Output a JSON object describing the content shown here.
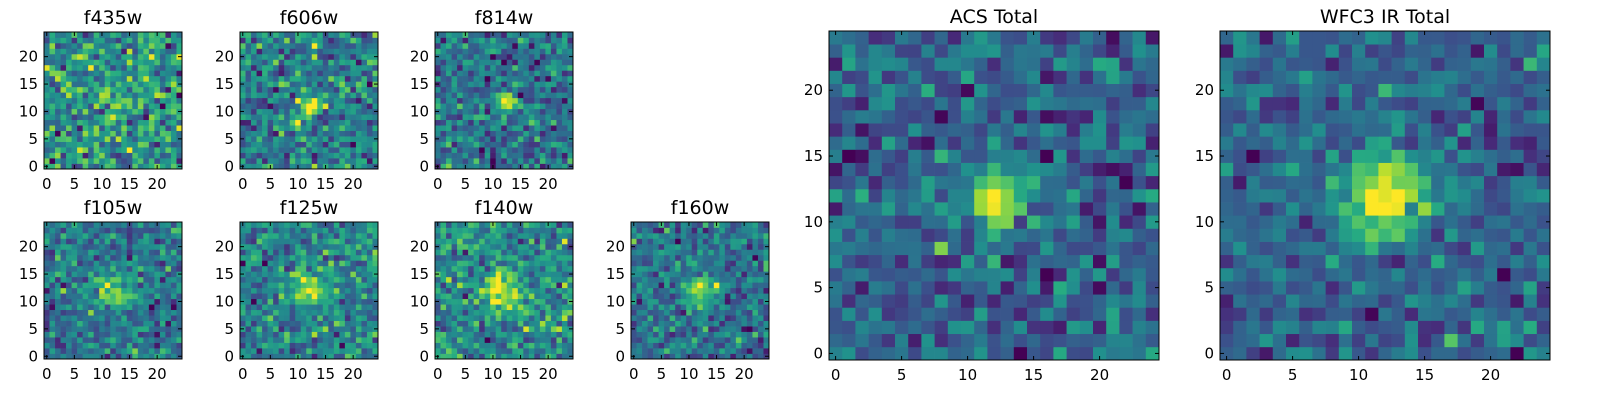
{
  "colormap": "viridis",
  "colors": {
    "low": "#440154",
    "mid": "#21918c",
    "high": "#fde725",
    "frame": "#000000",
    "background": "#ffffff"
  },
  "chart_data": [
    {
      "type": "heatmap",
      "title": "f435w",
      "grid_size": 25,
      "xticks": [
        "0",
        "5",
        "10",
        "15",
        "20"
      ],
      "yticks": [
        "0",
        "5",
        "10",
        "15",
        "20"
      ],
      "xlim": [
        -0.5,
        24.5
      ],
      "ylim": [
        -0.5,
        24.5
      ],
      "source": {
        "center": [
          12,
          11
        ],
        "amplitude": 0.15,
        "sigma": 2.2
      },
      "noise": 0.55,
      "seed": 435
    },
    {
      "type": "heatmap",
      "title": "f606w",
      "grid_size": 25,
      "xticks": [
        "0",
        "5",
        "10",
        "15",
        "20"
      ],
      "yticks": [
        "0",
        "5",
        "10",
        "15",
        "20"
      ],
      "xlim": [
        -0.5,
        24.5
      ],
      "ylim": [
        -0.5,
        24.5
      ],
      "source": {
        "center": [
          12,
          11
        ],
        "amplitude": 0.55,
        "sigma": 1.3
      },
      "noise": 0.5,
      "seed": 606
    },
    {
      "type": "heatmap",
      "title": "f814w",
      "grid_size": 25,
      "xticks": [
        "0",
        "5",
        "10",
        "15",
        "20"
      ],
      "yticks": [
        "0",
        "5",
        "10",
        "15",
        "20"
      ],
      "xlim": [
        -0.5,
        24.5
      ],
      "ylim": [
        -0.5,
        24.5
      ],
      "source": {
        "center": [
          12,
          11.5
        ],
        "amplitude": 0.6,
        "sigma": 1.3
      },
      "noise": 0.5,
      "seed": 814
    },
    {
      "type": "heatmap",
      "title": "f105w",
      "grid_size": 25,
      "xticks": [
        "0",
        "5",
        "10",
        "15",
        "20"
      ],
      "yticks": [
        "0",
        "5",
        "10",
        "15",
        "20"
      ],
      "xlim": [
        -0.5,
        24.5
      ],
      "ylim": [
        -0.5,
        24.5
      ],
      "source": {
        "center": [
          12,
          12
        ],
        "amplitude": 0.45,
        "sigma": 2.4
      },
      "noise": 0.5,
      "seed": 105
    },
    {
      "type": "heatmap",
      "title": "f125w",
      "grid_size": 25,
      "xticks": [
        "0",
        "5",
        "10",
        "15",
        "20"
      ],
      "yticks": [
        "0",
        "5",
        "10",
        "15",
        "20"
      ],
      "xlim": [
        -0.5,
        24.5
      ],
      "ylim": [
        -0.5,
        24.5
      ],
      "source": {
        "center": [
          12,
          12
        ],
        "amplitude": 0.5,
        "sigma": 2.3
      },
      "noise": 0.45,
      "seed": 125
    },
    {
      "type": "heatmap",
      "title": "f140w",
      "grid_size": 25,
      "xticks": [
        "0",
        "5",
        "10",
        "15",
        "20"
      ],
      "yticks": [
        "0",
        "5",
        "10",
        "15",
        "20"
      ],
      "xlim": [
        -0.5,
        24.5
      ],
      "ylim": [
        -0.5,
        24.5
      ],
      "source": {
        "center": [
          12,
          12
        ],
        "amplitude": 0.5,
        "sigma": 2.4
      },
      "noise": 0.45,
      "seed": 140
    },
    {
      "type": "heatmap",
      "title": "f160w",
      "grid_size": 25,
      "xticks": [
        "0",
        "5",
        "10",
        "15",
        "20"
      ],
      "yticks": [
        "0",
        "5",
        "10",
        "15",
        "20"
      ],
      "xlim": [
        -0.5,
        24.5
      ],
      "ylim": [
        -0.5,
        24.5
      ],
      "source": {
        "center": [
          12,
          12
        ],
        "amplitude": 0.55,
        "sigma": 2.2
      },
      "noise": 0.45,
      "seed": 160
    },
    {
      "type": "heatmap",
      "title": "ACS Total",
      "grid_size": 25,
      "xticks": [
        "0",
        "5",
        "10",
        "15",
        "20"
      ],
      "yticks": [
        "0",
        "5",
        "10",
        "15",
        "20"
      ],
      "xlim": [
        -0.5,
        24.5
      ],
      "ylim": [
        -0.5,
        24.5
      ],
      "source": {
        "center": [
          12,
          12
        ],
        "amplitude": 0.75,
        "sigma": 1.5
      },
      "noise": 0.42,
      "seed": 777
    },
    {
      "type": "heatmap",
      "title": "WFC3 IR Total",
      "grid_size": 25,
      "xticks": [
        "0",
        "5",
        "10",
        "15",
        "20"
      ],
      "yticks": [
        "0",
        "5",
        "10",
        "15",
        "20"
      ],
      "xlim": [
        -0.5,
        24.5
      ],
      "ylim": [
        -0.5,
        24.5
      ],
      "source": {
        "center": [
          12,
          12
        ],
        "amplitude": 0.75,
        "sigma": 2.2
      },
      "noise": 0.35,
      "seed": 999
    }
  ]
}
